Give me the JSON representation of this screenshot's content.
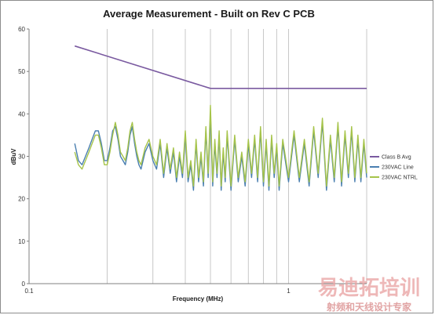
{
  "chart_data": {
    "type": "line",
    "title": "Average Measurement - Built on Rev C PCB",
    "xlabel": "Frequency (MHz)",
    "ylabel": "dBuV",
    "x_scale": "log",
    "xlim": [
      0.1,
      2.0
    ],
    "ylim": [
      0,
      60
    ],
    "y_ticks": [
      0,
      10,
      20,
      30,
      40,
      50,
      60
    ],
    "x_tick_labels": [
      {
        "value": 0.1,
        "label": "0.1"
      },
      {
        "value": 1,
        "label": "1"
      }
    ],
    "grid": "vertical log gridlines",
    "legend_position": "right",
    "colors": {
      "limit": "#7a5aa0",
      "line": "#4a7fb0",
      "ntrl": "#a6c44a",
      "grid": "#c8c8c8",
      "axis": "#808080"
    },
    "series": [
      {
        "name": "Class B Avg",
        "x": [
          0.15,
          0.5,
          2.0
        ],
        "values": [
          56,
          46,
          46
        ]
      },
      {
        "name": "230VAC Line",
        "x": [
          0.15,
          0.155,
          0.16,
          0.165,
          0.17,
          0.175,
          0.18,
          0.185,
          0.19,
          0.195,
          0.2,
          0.205,
          0.21,
          0.215,
          0.22,
          0.225,
          0.23,
          0.235,
          0.24,
          0.245,
          0.25,
          0.255,
          0.26,
          0.265,
          0.27,
          0.28,
          0.29,
          0.3,
          0.31,
          0.32,
          0.33,
          0.34,
          0.35,
          0.36,
          0.37,
          0.38,
          0.39,
          0.4,
          0.41,
          0.42,
          0.43,
          0.44,
          0.45,
          0.46,
          0.47,
          0.48,
          0.49,
          0.5,
          0.51,
          0.52,
          0.53,
          0.54,
          0.55,
          0.56,
          0.57,
          0.58,
          0.6,
          0.62,
          0.64,
          0.66,
          0.68,
          0.7,
          0.72,
          0.74,
          0.76,
          0.78,
          0.8,
          0.82,
          0.84,
          0.86,
          0.88,
          0.9,
          0.92,
          0.95,
          1.0,
          1.05,
          1.1,
          1.15,
          1.2,
          1.25,
          1.3,
          1.35,
          1.4,
          1.45,
          1.5,
          1.55,
          1.6,
          1.65,
          1.7,
          1.75,
          1.8,
          1.85,
          1.9,
          1.95,
          2.0
        ],
        "values": [
          33,
          29,
          28,
          30,
          32,
          34,
          36,
          36,
          33,
          29,
          29,
          32,
          36,
          37,
          34,
          30,
          29,
          28,
          31,
          35,
          37,
          33,
          30,
          28,
          27,
          31,
          33,
          29,
          27,
          33,
          25,
          32,
          26,
          31,
          24,
          30,
          25,
          35,
          24,
          28,
          22,
          33,
          24,
          30,
          23,
          36,
          25,
          40,
          23,
          33,
          25,
          35,
          22,
          31,
          24,
          35,
          22,
          34,
          24,
          30,
          23,
          33,
          25,
          34,
          24,
          36,
          23,
          33,
          22,
          34,
          25,
          32,
          22,
          33,
          24,
          35,
          24,
          33,
          23,
          36,
          25,
          38,
          22,
          34,
          24,
          37,
          23,
          35,
          25,
          36,
          24,
          34,
          24,
          33,
          25
        ]
      },
      {
        "name": "230VAC NTRL",
        "x": [
          0.15,
          0.155,
          0.16,
          0.165,
          0.17,
          0.175,
          0.18,
          0.185,
          0.19,
          0.195,
          0.2,
          0.205,
          0.21,
          0.215,
          0.22,
          0.225,
          0.23,
          0.235,
          0.24,
          0.245,
          0.25,
          0.255,
          0.26,
          0.265,
          0.27,
          0.28,
          0.29,
          0.3,
          0.31,
          0.32,
          0.33,
          0.34,
          0.35,
          0.36,
          0.37,
          0.38,
          0.39,
          0.4,
          0.41,
          0.42,
          0.43,
          0.44,
          0.45,
          0.46,
          0.47,
          0.48,
          0.49,
          0.5,
          0.51,
          0.52,
          0.53,
          0.54,
          0.55,
          0.56,
          0.57,
          0.58,
          0.6,
          0.62,
          0.64,
          0.66,
          0.68,
          0.7,
          0.72,
          0.74,
          0.76,
          0.78,
          0.8,
          0.82,
          0.84,
          0.86,
          0.88,
          0.9,
          0.92,
          0.95,
          1.0,
          1.05,
          1.1,
          1.15,
          1.2,
          1.25,
          1.3,
          1.35,
          1.4,
          1.45,
          1.5,
          1.55,
          1.6,
          1.65,
          1.7,
          1.75,
          1.8,
          1.85,
          1.9,
          1.95,
          2.0
        ],
        "values": [
          31,
          28,
          27,
          29,
          31,
          33,
          35,
          35,
          32,
          28,
          28,
          31,
          35,
          38,
          35,
          31,
          30,
          29,
          32,
          36,
          38,
          34,
          31,
          29,
          28,
          32,
          34,
          30,
          28,
          34,
          26,
          33,
          27,
          32,
          25,
          31,
          26,
          36,
          25,
          29,
          23,
          34,
          25,
          31,
          24,
          37,
          26,
          42,
          24,
          34,
          26,
          36,
          23,
          32,
          25,
          36,
          23,
          35,
          25,
          31,
          24,
          34,
          26,
          35,
          25,
          37,
          24,
          34,
          23,
          35,
          26,
          33,
          23,
          34,
          25,
          36,
          25,
          34,
          24,
          37,
          26,
          39,
          23,
          35,
          25,
          38,
          24,
          36,
          26,
          37,
          25,
          35,
          25,
          34,
          26
        ]
      }
    ]
  },
  "watermark": {
    "main": "易迪拓培训",
    "sub": "射频和天线设计专家"
  }
}
